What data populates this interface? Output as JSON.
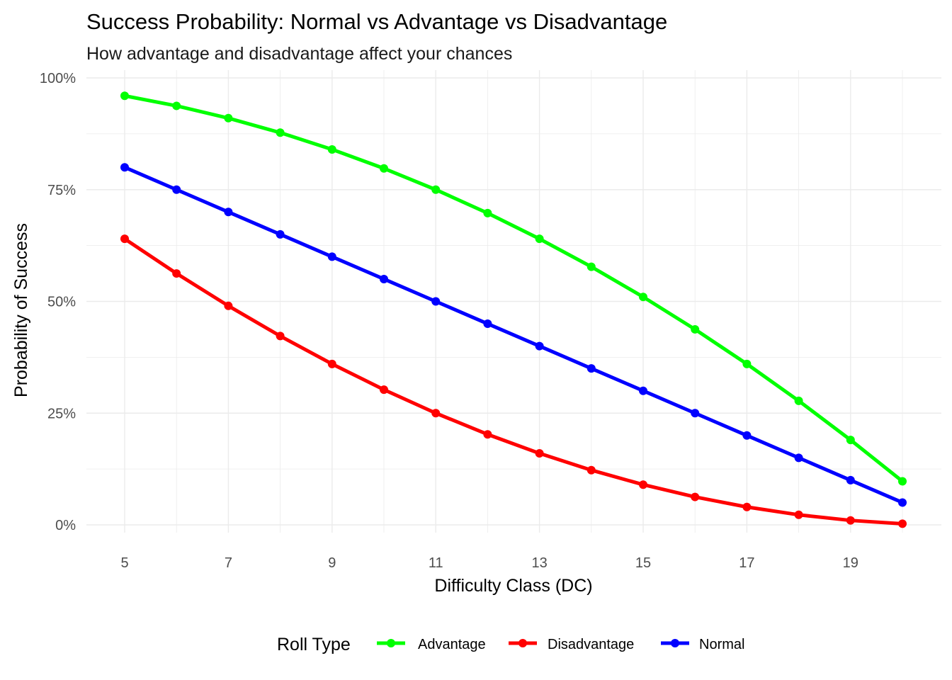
{
  "chart_data": {
    "type": "line",
    "title": "Success Probability: Normal vs Advantage vs Disadvantage",
    "subtitle": "How advantage and disadvantage affect your chances",
    "xlabel": "Difficulty Class (DC)",
    "ylabel": "Probability of Success",
    "x": [
      5,
      6,
      7,
      8,
      9,
      10,
      11,
      12,
      13,
      14,
      15,
      16,
      17,
      18,
      19,
      20
    ],
    "xlim": [
      5,
      20
    ],
    "ylim": [
      0,
      1
    ],
    "x_ticks": [
      5,
      7,
      9,
      11,
      13,
      15,
      17,
      19
    ],
    "y_ticks": [
      0,
      0.25,
      0.5,
      0.75,
      1
    ],
    "y_tick_labels": [
      "0%",
      "25%",
      "50%",
      "75%",
      "100%"
    ],
    "grid": true,
    "legend": {
      "title": "Roll Type",
      "position": "bottom"
    },
    "series": [
      {
        "name": "Advantage",
        "color": "#00ff00",
        "values": [
          0.96,
          0.9375,
          0.91,
          0.8775,
          0.84,
          0.7975,
          0.75,
          0.6975,
          0.64,
          0.5775,
          0.51,
          0.4375,
          0.36,
          0.2775,
          0.19,
          0.0975
        ]
      },
      {
        "name": "Disadvantage",
        "color": "#ff0000",
        "values": [
          0.64,
          0.5625,
          0.49,
          0.4225,
          0.36,
          0.3025,
          0.25,
          0.2025,
          0.16,
          0.1225,
          0.09,
          0.0625,
          0.04,
          0.0225,
          0.01,
          0.0025
        ]
      },
      {
        "name": "Normal",
        "color": "#0000ff",
        "values": [
          0.8,
          0.75,
          0.7,
          0.65,
          0.6,
          0.55,
          0.5,
          0.45,
          0.4,
          0.35,
          0.3,
          0.25,
          0.2,
          0.15,
          0.1,
          0.05
        ]
      }
    ]
  }
}
